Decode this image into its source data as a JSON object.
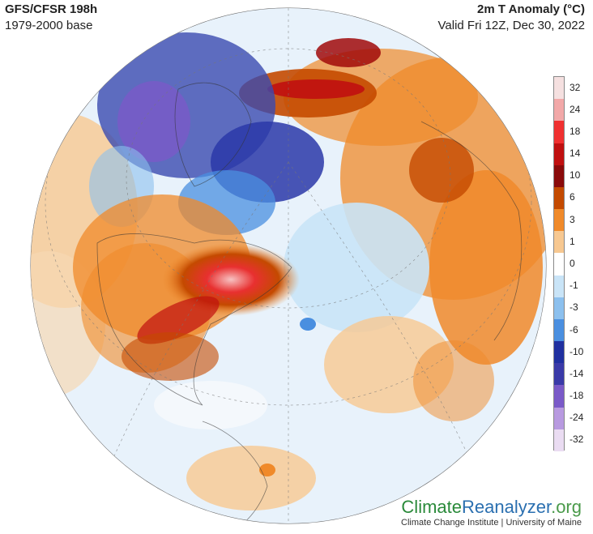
{
  "header": {
    "model": "GFS/CFSR 198h",
    "base": "1979-2000 base",
    "variable": "2m T Anomaly (°C)",
    "valid": "Valid Fri 12Z, Dec 30, 2022"
  },
  "legend": {
    "ticks": [
      "32",
      "24",
      "18",
      "14",
      "10",
      "6",
      "3",
      "1",
      "0",
      "-1",
      "-3",
      "-6",
      "-10",
      "-14",
      "-18",
      "-24",
      "-32"
    ],
    "colors": [
      "#f5e0e0",
      "#f2a8a8",
      "#f03030",
      "#c01010",
      "#8a0a0a",
      "#c44a00",
      "#f08a2a",
      "#f7c891",
      "#ffffff",
      "#c9e4f7",
      "#8cc0ee",
      "#4a8fe0",
      "#2030a0",
      "#3a3aa8",
      "#7a5ac8",
      "#b89ae0",
      "#eadcf2"
    ]
  },
  "brand": {
    "part1": "Climate",
    "part2": "Reanalyzer",
    "part3": ".org",
    "sub": "Climate Change Institute | University of Maine"
  }
}
